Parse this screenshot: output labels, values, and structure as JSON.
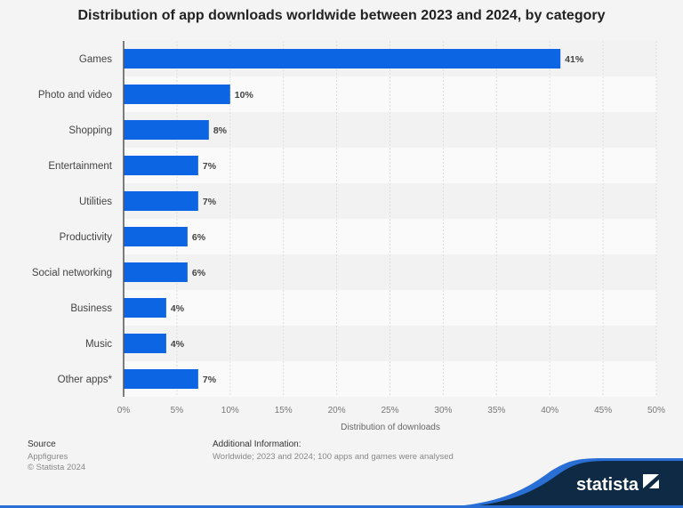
{
  "chart_data": {
    "type": "bar",
    "orientation": "horizontal",
    "title": "Distribution of app downloads worldwide between 2023 and 2024, by category",
    "xlabel": "Distribution of downloads",
    "ylabel": "",
    "categories": [
      "Games",
      "Photo and video",
      "Shopping",
      "Entertainment",
      "Utilities",
      "Productivity",
      "Social networking",
      "Business",
      "Music",
      "Other apps*"
    ],
    "values": [
      41,
      10,
      8,
      7,
      7,
      6,
      6,
      4,
      4,
      7
    ],
    "data_labels": [
      "41%",
      "10%",
      "8%",
      "7%",
      "7%",
      "6%",
      "6%",
      "4%",
      "4%",
      "7%"
    ],
    "xlim": [
      0,
      50
    ],
    "xticks": [
      "0%",
      "5%",
      "10%",
      "15%",
      "20%",
      "25%",
      "30%",
      "35%",
      "40%",
      "45%",
      "50%"
    ],
    "grid": true,
    "bar_color": "#0c66e4"
  },
  "footer": {
    "source_label": "Source",
    "source": "Appfigures",
    "copyright": "© Statista 2024",
    "info_label": "Additional Information:",
    "info": "Worldwide; 2023 and 2024; 100 apps and games were analysed",
    "logo": "statista"
  }
}
